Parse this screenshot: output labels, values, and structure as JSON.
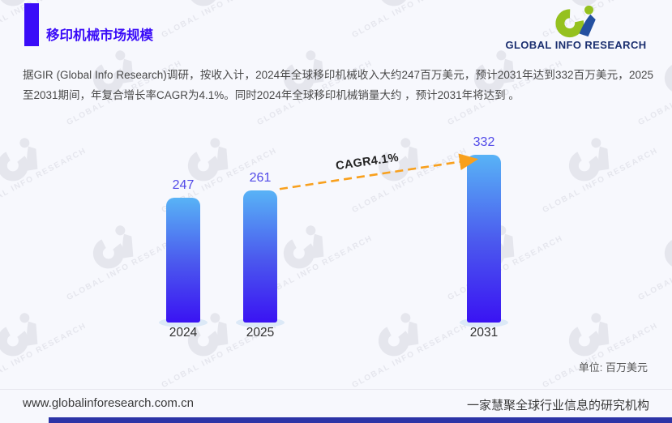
{
  "header": {
    "title": "移印机械市场规模"
  },
  "logo": {
    "word1": "GLOBAL",
    "word2": "INFO",
    "word3": "RESEARCH"
  },
  "intro": {
    "text": "据GIR (Global Info Research)调研，按收入计，2024年全球移印机械收入大约247百万美元，预计2031年达到332百万美元，2025至2031期间，年复合增长率CAGR为4.1%。同时2024年全球移印机械销量大约 ，预计2031年将达到 。"
  },
  "chart_data": {
    "type": "bar",
    "title": "移印机械市场规模",
    "categories": [
      "2024",
      "2025",
      "2031"
    ],
    "values": [
      247,
      261,
      332
    ],
    "unit_label": "单位: 百万美元",
    "annotation": "CAGR4.1%",
    "annotation_from": "2025",
    "annotation_to": "2031",
    "ylim": [
      0,
      380
    ],
    "grid": false,
    "legend": false,
    "bar_color_top": "#58b3f6",
    "bar_color_mid": "#4b59ee",
    "bar_color_bottom": "#3a13f3",
    "value_label_color": "#5149e8",
    "arrow_color": "#f8a01d"
  },
  "watermark": {
    "text": "GLOBAL INFO RESEARCH"
  },
  "footer": {
    "website": "www.globalinforesearch.com.cn",
    "tagline": "一家慧聚全球行业信息的研究机构"
  },
  "colors": {
    "accent": "#3a0cf8",
    "logo_green": "#95c11f",
    "logo_blue": "#2450a0",
    "logo_text_navy": "#1b2f70",
    "footer_bar_blue": "#2c34a6",
    "watermark_gray": "#dcdde6"
  }
}
